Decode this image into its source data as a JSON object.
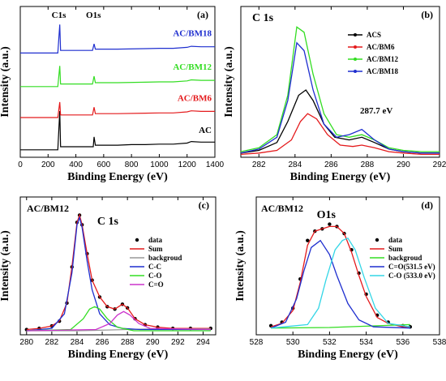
{
  "chart_data": [
    {
      "panel": "(a)",
      "type": "line",
      "xlabel": "Binding Energy (eV)",
      "ylabel": "Intensity (a.u.)",
      "xlim": [
        0,
        1400
      ],
      "xticks": [
        0,
        200,
        400,
        600,
        800,
        1000,
        1200,
        1400
      ],
      "annotations": [
        "C1s",
        "O1s"
      ],
      "series": [
        {
          "name": "AC",
          "color": "#000000",
          "offset": 0,
          "x": [
            0,
            100,
            200,
            270,
            284,
            290,
            400,
            500,
            525,
            531,
            540,
            600,
            700,
            800,
            900,
            1000,
            1100,
            1200,
            1230,
            1300,
            1400
          ],
          "y": [
            0.1,
            0.1,
            0.1,
            0.1,
            1.6,
            0.22,
            0.22,
            0.22,
            0.22,
            0.6,
            0.28,
            0.28,
            0.28,
            0.3,
            0.3,
            0.32,
            0.32,
            0.36,
            0.42,
            0.4,
            0.4
          ]
        },
        {
          "name": "AC/BM6",
          "color": "#e41a1c",
          "offset": 1.25,
          "x": [
            0,
            200,
            270,
            284,
            290,
            400,
            520,
            531,
            540,
            700,
            900,
            1000,
            1100,
            1200,
            1230,
            1300,
            1400
          ],
          "y": [
            0.1,
            0.1,
            0.1,
            0.7,
            0.2,
            0.2,
            0.2,
            0.5,
            0.25,
            0.25,
            0.27,
            0.28,
            0.28,
            0.32,
            0.36,
            0.34,
            0.34
          ]
        },
        {
          "name": "AC/BM12",
          "color": "#33dd22",
          "offset": 2.45,
          "x": [
            0,
            200,
            270,
            284,
            290,
            400,
            520,
            531,
            540,
            700,
            900,
            1000,
            1100,
            1200,
            1230,
            1300,
            1400
          ],
          "y": [
            0.1,
            0.1,
            0.1,
            0.9,
            0.2,
            0.2,
            0.2,
            0.5,
            0.25,
            0.25,
            0.27,
            0.28,
            0.28,
            0.32,
            0.36,
            0.34,
            0.34
          ]
        },
        {
          "name": "AC/BM18",
          "color": "#1f2fcf",
          "offset": 3.75,
          "x": [
            0,
            200,
            270,
            284,
            290,
            400,
            520,
            531,
            540,
            700,
            900,
            1000,
            1100,
            1200,
            1230,
            1300,
            1400
          ],
          "y": [
            0.1,
            0.1,
            0.1,
            1.2,
            0.2,
            0.2,
            0.2,
            0.45,
            0.25,
            0.25,
            0.27,
            0.28,
            0.28,
            0.32,
            0.36,
            0.34,
            0.34
          ]
        }
      ]
    },
    {
      "panel": "(b)",
      "type": "line",
      "title": "C 1s",
      "xlabel": "Binding Energy (eV)",
      "ylabel": "Intensity (a.u.)",
      "xlim": [
        281,
        292
      ],
      "xticks": [
        282,
        284,
        286,
        288,
        290,
        292
      ],
      "annotations": [
        "287.7 eV"
      ],
      "legend_position": "top-right",
      "series": [
        {
          "name": "ACS",
          "color": "#000000",
          "x": [
            281,
            282,
            283,
            283.6,
            284.2,
            284.6,
            285,
            285.6,
            286.2,
            287,
            287.7,
            288.4,
            289.2,
            290,
            291,
            292
          ],
          "y": [
            0.02,
            0.04,
            0.1,
            0.26,
            0.46,
            0.5,
            0.42,
            0.24,
            0.14,
            0.12,
            0.14,
            0.1,
            0.05,
            0.03,
            0.02,
            0.02
          ]
        },
        {
          "name": "AC/BM6",
          "color": "#e41a1c",
          "x": [
            281,
            282,
            283,
            283.8,
            284.3,
            284.7,
            285.2,
            285.8,
            286.5,
            287.2,
            287.7,
            288.4,
            289.2,
            290,
            291,
            292
          ],
          "y": [
            0.01,
            0.02,
            0.04,
            0.12,
            0.26,
            0.32,
            0.28,
            0.16,
            0.08,
            0.07,
            0.08,
            0.06,
            0.03,
            0.02,
            0.01,
            0.01
          ]
        },
        {
          "name": "AC/BM12",
          "color": "#33dd22",
          "x": [
            281,
            282,
            283,
            283.6,
            284.1,
            284.5,
            285,
            285.6,
            286.3,
            287,
            287.7,
            288.4,
            289.2,
            290,
            291,
            292
          ],
          "y": [
            0.03,
            0.06,
            0.16,
            0.46,
            0.98,
            0.94,
            0.62,
            0.32,
            0.16,
            0.14,
            0.16,
            0.12,
            0.06,
            0.04,
            0.03,
            0.03
          ]
        },
        {
          "name": "AC/BM18",
          "color": "#1f2fcf",
          "x": [
            281,
            282,
            283,
            283.6,
            284.1,
            284.5,
            285,
            285.6,
            286.3,
            287,
            287.7,
            288.4,
            289.2,
            290,
            291,
            292
          ],
          "y": [
            0.02,
            0.05,
            0.14,
            0.42,
            0.86,
            0.8,
            0.5,
            0.24,
            0.14,
            0.16,
            0.2,
            0.12,
            0.05,
            0.03,
            0.02,
            0.02
          ]
        }
      ]
    },
    {
      "panel": "(c)",
      "type": "line",
      "title": "C 1s",
      "sample_label": "AC/BM12",
      "xlabel": "Binding Energy (eV)",
      "ylabel": "Intensity (a.u.)",
      "xlim": [
        279.5,
        295
      ],
      "xticks": [
        280,
        282,
        284,
        286,
        288,
        290,
        292,
        294
      ],
      "legend_position": "center-right",
      "series": [
        {
          "name": "data",
          "color": "#000000",
          "style": "markers",
          "x": [
            280,
            281,
            282,
            282.6,
            283.2,
            283.6,
            284,
            284.2,
            284.4,
            284.8,
            285.2,
            285.8,
            286.4,
            287,
            287.6,
            288,
            288.6,
            289.4,
            290.4,
            291.6,
            293,
            294.6
          ],
          "y": [
            0.03,
            0.04,
            0.06,
            0.1,
            0.25,
            0.55,
            0.92,
            0.98,
            0.9,
            0.66,
            0.44,
            0.3,
            0.22,
            0.2,
            0.24,
            0.21,
            0.12,
            0.07,
            0.05,
            0.04,
            0.04,
            0.04
          ]
        },
        {
          "name": "Sum",
          "color": "#e41a1c",
          "x": [
            280,
            281,
            282,
            282.6,
            283.2,
            283.6,
            284,
            284.2,
            284.4,
            284.8,
            285.2,
            285.8,
            286.4,
            287,
            287.6,
            288,
            288.6,
            289.4,
            290.4,
            291.6,
            293,
            294.6
          ],
          "y": [
            0.03,
            0.04,
            0.06,
            0.1,
            0.25,
            0.55,
            0.92,
            0.98,
            0.9,
            0.66,
            0.44,
            0.3,
            0.22,
            0.2,
            0.24,
            0.21,
            0.12,
            0.07,
            0.05,
            0.04,
            0.04,
            0.04
          ]
        },
        {
          "name": "backgroud",
          "color": "#999999",
          "x": [
            280,
            284,
            286,
            288,
            290,
            294.6
          ],
          "y": [
            0.02,
            0.02,
            0.025,
            0.03,
            0.035,
            0.035
          ]
        },
        {
          "name": "C-C",
          "color": "#1f2fcf",
          "x": [
            280,
            282,
            283,
            283.6,
            284,
            284.2,
            284.4,
            284.8,
            285.2,
            285.8,
            286.6,
            287.6,
            289,
            294.6
          ],
          "y": [
            0.02,
            0.04,
            0.16,
            0.5,
            0.9,
            0.96,
            0.88,
            0.6,
            0.36,
            0.16,
            0.07,
            0.04,
            0.03,
            0.03
          ]
        },
        {
          "name": "C-O",
          "color": "#33dd22",
          "x": [
            280,
            283.5,
            284.5,
            285,
            285.4,
            285.8,
            286.4,
            287.2,
            288.5,
            294.6
          ],
          "y": [
            0.02,
            0.03,
            0.12,
            0.2,
            0.22,
            0.2,
            0.12,
            0.05,
            0.02,
            0.02
          ]
        },
        {
          "name": "C=O",
          "color": "#cc33cc",
          "x": [
            280,
            285.5,
            286.6,
            287.2,
            287.7,
            288.2,
            288.9,
            289.8,
            294.6
          ],
          "y": [
            0.02,
            0.03,
            0.08,
            0.15,
            0.18,
            0.15,
            0.08,
            0.04,
            0.03
          ]
        }
      ]
    },
    {
      "panel": "(d)",
      "type": "line",
      "title": "O1s",
      "sample_label": "AC/BM12",
      "xlabel": "Binding Energy (eV)",
      "ylabel": "Intensity (a.u.)",
      "xlim": [
        528,
        538
      ],
      "xticks": [
        528,
        530,
        532,
        534,
        536,
        538
      ],
      "legend_position": "top-right",
      "series": [
        {
          "name": "data",
          "color": "#000000",
          "style": "markers",
          "x": [
            528.8,
            529.4,
            530,
            530.4,
            530.8,
            531.2,
            531.6,
            532,
            532.4,
            532.8,
            533.2,
            533.6,
            534,
            534.6,
            535.2,
            536,
            536.4
          ],
          "y": [
            0.05,
            0.08,
            0.2,
            0.45,
            0.78,
            0.86,
            0.88,
            0.92,
            0.9,
            0.84,
            0.7,
            0.5,
            0.32,
            0.14,
            0.08,
            0.05,
            0.04
          ]
        },
        {
          "name": "Sum",
          "color": "#e41a1c",
          "x": [
            528.8,
            529.4,
            530,
            530.4,
            530.8,
            531.2,
            531.6,
            532,
            532.4,
            532.8,
            533.2,
            533.6,
            534,
            534.6,
            535.2,
            536,
            536.4
          ],
          "y": [
            0.04,
            0.07,
            0.18,
            0.42,
            0.74,
            0.86,
            0.88,
            0.9,
            0.9,
            0.84,
            0.68,
            0.48,
            0.3,
            0.12,
            0.07,
            0.04,
            0.04
          ]
        },
        {
          "name": "backgroud",
          "color": "#33dd22",
          "x": [
            528.8,
            532,
            536.4
          ],
          "y": [
            0.03,
            0.035,
            0.06
          ]
        },
        {
          "name": "C=O(531.5 eV)",
          "color": "#1f2fcf",
          "x": [
            528.8,
            529.6,
            530.2,
            530.6,
            531,
            531.5,
            532,
            532.4,
            533,
            533.6,
            534.4,
            536.4
          ],
          "y": [
            0.03,
            0.08,
            0.28,
            0.52,
            0.72,
            0.78,
            0.66,
            0.48,
            0.24,
            0.1,
            0.04,
            0.03
          ]
        },
        {
          "name": "C-O (533.0 eV)",
          "color": "#33d6e6",
          "x": [
            528.8,
            530.8,
            531.4,
            531.8,
            532.3,
            532.7,
            533,
            533.4,
            533.9,
            534.5,
            535.2,
            536.4
          ],
          "y": [
            0.03,
            0.06,
            0.2,
            0.44,
            0.7,
            0.78,
            0.8,
            0.7,
            0.46,
            0.2,
            0.07,
            0.04
          ]
        }
      ]
    }
  ]
}
